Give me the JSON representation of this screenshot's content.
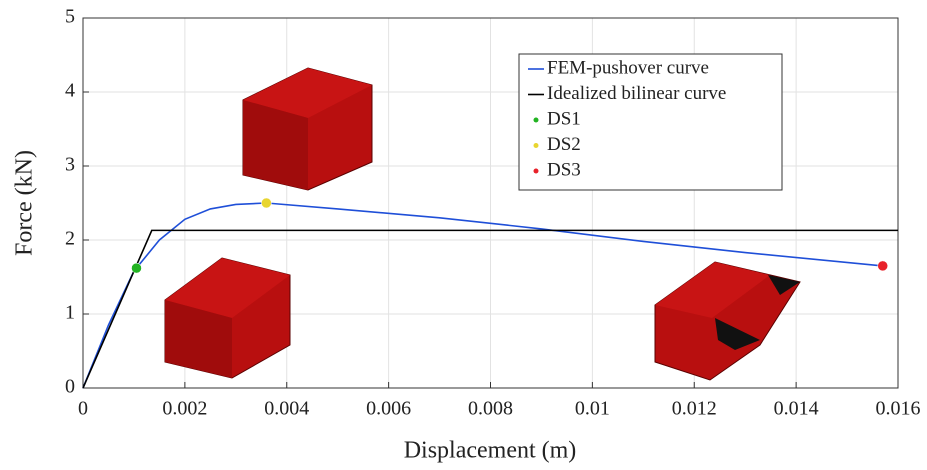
{
  "chart_data": {
    "type": "line",
    "xlabel": "Displacement (m)",
    "ylabel": "Force (kN)",
    "xlim": [
      0,
      0.016
    ],
    "xticks": [
      0,
      0.002,
      0.004,
      0.006,
      0.008,
      0.01,
      0.012,
      0.014,
      0.016
    ],
    "ylim": [
      0,
      5
    ],
    "yticks": [
      0,
      1,
      2,
      3,
      4,
      5
    ],
    "grid": true,
    "legend": "upper right",
    "series": [
      {
        "name": "FEM-pushover curve",
        "color": "#1f4fd8",
        "style": "line",
        "x": [
          0,
          0.0005,
          0.001,
          0.0015,
          0.002,
          0.0025,
          0.003,
          0.0036,
          0.005,
          0.007,
          0.009,
          0.011,
          0.013,
          0.0157
        ],
        "values": [
          0,
          0.85,
          1.58,
          2.0,
          2.28,
          2.42,
          2.48,
          2.5,
          2.42,
          2.3,
          2.15,
          1.98,
          1.83,
          1.65
        ]
      },
      {
        "name": "Idealized bilinear curve",
        "color": "#000000",
        "style": "line",
        "x": [
          0,
          0.00135,
          0.016
        ],
        "values": [
          0,
          2.13,
          2.13
        ]
      },
      {
        "name": "DS1",
        "color": "#22b322",
        "style": "marker",
        "x": [
          0.00105
        ],
        "values": [
          1.62
        ]
      },
      {
        "name": "DS2",
        "color": "#e8d530",
        "style": "marker",
        "x": [
          0.0036
        ],
        "values": [
          2.5
        ]
      },
      {
        "name": "DS3",
        "color": "#e8212a",
        "style": "marker",
        "x": [
          0.0157
        ],
        "values": [
          1.65
        ]
      }
    ]
  }
}
